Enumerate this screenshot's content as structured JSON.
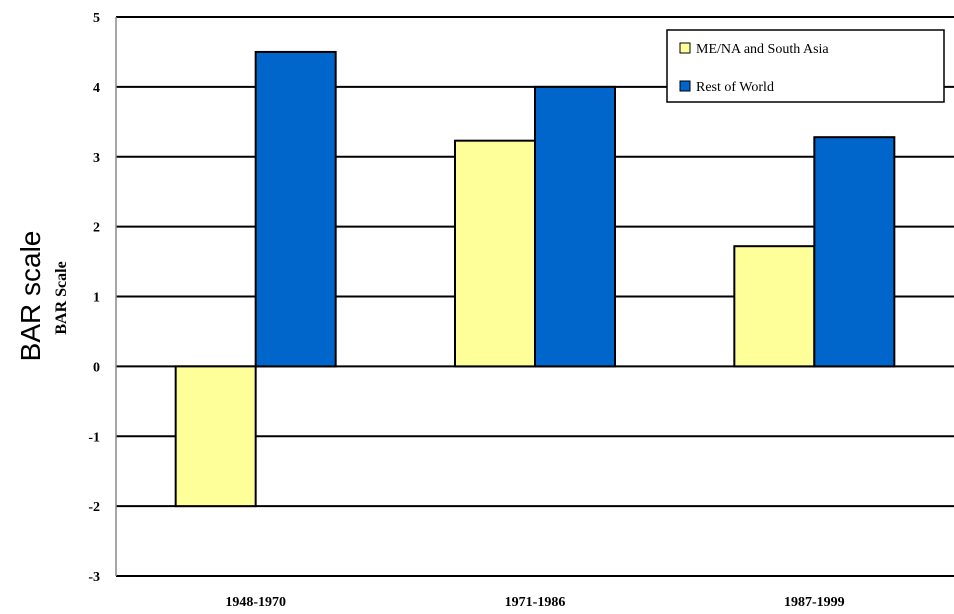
{
  "chart_data": {
    "type": "bar",
    "categories": [
      "1948-1970",
      "1971-1986",
      "1987-1999"
    ],
    "series": [
      {
        "name": "ME/NA and South Asia",
        "values": [
          -2,
          3.23,
          1.72
        ],
        "color": "#ffff99"
      },
      {
        "name": "Rest of World",
        "values": [
          4.5,
          4.0,
          3.28
        ],
        "color": "#0066cc"
      }
    ],
    "ylabel_outer": "BAR scale",
    "ylabel": "BAR Scale",
    "ylim": [
      -3,
      5
    ],
    "yticks": [
      "5",
      "4",
      "3",
      "2",
      "1",
      "0",
      "-1",
      "-2",
      "-3"
    ],
    "grid": true,
    "legend": "top-right"
  }
}
